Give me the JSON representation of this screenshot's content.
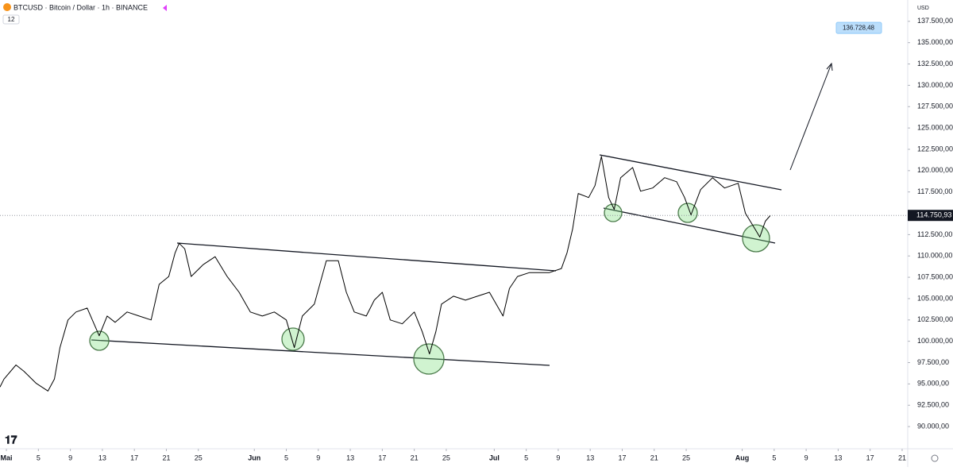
{
  "header": {
    "symbol": "BTCUSD · Bitcoin / Dollar · 1h · BINANCE",
    "badge": "12"
  },
  "chart_data": {
    "type": "line",
    "color": "#000000",
    "y_unit": "USD",
    "x": [
      -0.8,
      -0.3,
      1.2,
      2.2,
      3.7,
      5.2,
      6.0,
      6.7,
      7.7,
      8.7,
      10.1,
      11.6,
      12.6,
      13.6,
      15.1,
      16.6,
      18.1,
      19.1,
      20.3,
      21.1,
      21.6,
      22.3,
      23.1,
      24.6,
      26.1,
      27.6,
      29.1,
      30.5,
      32.0,
      33.5,
      35.0,
      36.0,
      37.0,
      38.5,
      40.0,
      41.5,
      42.5,
      43.5,
      45.0,
      46.0,
      47.0,
      48.0,
      49.5,
      51.0,
      52.0,
      52.9,
      53.7,
      54.4,
      55.9,
      57.4,
      58.9,
      60.4,
      62.1,
      62.9,
      63.9,
      65.4,
      67.9,
      69.4,
      70.1,
      70.8,
      71.5,
      72.8,
      73.6,
      74.4,
      75.3,
      76.0,
      76.8,
      78.3,
      79.3,
      80.8,
      82.3,
      83.8,
      84.8,
      85.6,
      86.8,
      88.3,
      89.8,
      91.5,
      92.4,
      93.5,
      94.2,
      94.9,
      95.5
    ],
    "values": [
      94630,
      95560,
      97220,
      96480,
      95090,
      94170,
      95560,
      99260,
      102500,
      103430,
      103890,
      100650,
      102960,
      102220,
      103430,
      102960,
      102500,
      106670,
      107590,
      110370,
      111480,
      110830,
      107590,
      108980,
      109910,
      107590,
      105740,
      103430,
      102960,
      103430,
      102500,
      99260,
      102960,
      104350,
      109450,
      109450,
      105740,
      103430,
      102960,
      104820,
      105740,
      102500,
      102040,
      103430,
      101110,
      98520,
      101110,
      104350,
      105280,
      104820,
      105280,
      105740,
      102960,
      106200,
      107590,
      108050,
      108050,
      108520,
      110370,
      113150,
      117320,
      116850,
      118240,
      121670,
      116850,
      115460,
      119170,
      120370,
      117590,
      117960,
      119170,
      118700,
      116850,
      114820,
      117780,
      119170,
      117960,
      118520,
      115000,
      113330,
      112220,
      114070,
      114720
    ],
    "last_price": {
      "value": 114750.93,
      "label": "114.750,93"
    },
    "target": {
      "value": 136728.48,
      "label": "136.728,48"
    },
    "xlim": [
      -0.8,
      112.7
    ],
    "ylim": [
      87400,
      140000
    ],
    "xticks": [
      {
        "value": 0,
        "label": "Mai"
      },
      {
        "value": 4,
        "label": "5"
      },
      {
        "value": 8,
        "label": "9"
      },
      {
        "value": 12,
        "label": "13"
      },
      {
        "value": 16,
        "label": "17"
      },
      {
        "value": 20,
        "label": "21"
      },
      {
        "value": 24,
        "label": "25"
      },
      {
        "value": 31,
        "label": "Jun"
      },
      {
        "value": 35,
        "label": "5"
      },
      {
        "value": 39,
        "label": "9"
      },
      {
        "value": 43,
        "label": "13"
      },
      {
        "value": 47,
        "label": "17"
      },
      {
        "value": 51,
        "label": "21"
      },
      {
        "value": 55,
        "label": "25"
      },
      {
        "value": 61,
        "label": "Jul"
      },
      {
        "value": 65,
        "label": "5"
      },
      {
        "value": 69,
        "label": "9"
      },
      {
        "value": 73,
        "label": "13"
      },
      {
        "value": 77,
        "label": "17"
      },
      {
        "value": 81,
        "label": "21"
      },
      {
        "value": 85,
        "label": "25"
      },
      {
        "value": 92,
        "label": "Aug"
      },
      {
        "value": 96,
        "label": "5"
      },
      {
        "value": 100,
        "label": "9"
      },
      {
        "value": 104,
        "label": "13"
      },
      {
        "value": 108,
        "label": "17"
      },
      {
        "value": 112,
        "label": "21"
      }
    ],
    "yticks": [
      {
        "value": 90000,
        "label": "90.000,00"
      },
      {
        "value": 92500,
        "label": "92.500,00"
      },
      {
        "value": 95000,
        "label": "95.000,00"
      },
      {
        "value": 97500,
        "label": "97.500,00"
      },
      {
        "value": 100000,
        "label": "100.000,00"
      },
      {
        "value": 102500,
        "label": "102.500,00"
      },
      {
        "value": 105000,
        "label": "105.000,00"
      },
      {
        "value": 107500,
        "label": "107.500,00"
      },
      {
        "value": 110000,
        "label": "110.000,00"
      },
      {
        "value": 112500,
        "label": "112.500,00"
      },
      {
        "value": 115000,
        "label": "115.000,00"
      },
      {
        "value": 117500,
        "label": "117.500,00"
      },
      {
        "value": 120000,
        "label": "120.000,00"
      },
      {
        "value": 122500,
        "label": "122.500,00"
      },
      {
        "value": 125000,
        "label": "125.000,00"
      },
      {
        "value": 127500,
        "label": "127.500,00"
      },
      {
        "value": 130000,
        "label": "130.000,00"
      },
      {
        "value": 132500,
        "label": "132.500,00"
      },
      {
        "value": 135000,
        "label": "135.000,00"
      },
      {
        "value": 137500,
        "label": "137.500,00"
      }
    ]
  }
}
